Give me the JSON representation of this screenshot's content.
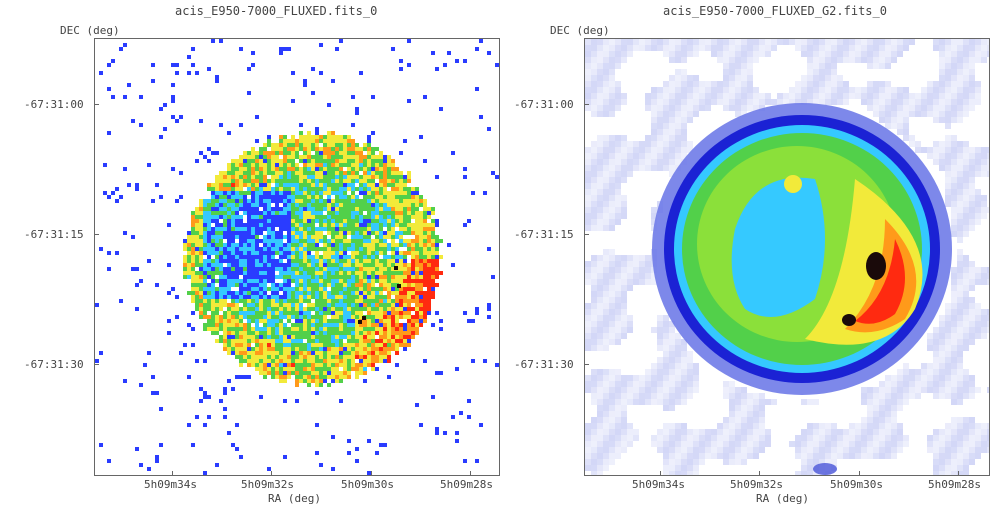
{
  "panels": [
    {
      "title": "acis_E950-7000_FLUXED.fits_0",
      "ylabel": "DEC (deg)",
      "xlabel": "RA (deg)",
      "yticks": [
        "-67:31:00",
        "-67:31:15",
        "-67:31:30"
      ],
      "xticks": [
        "5h09m34s",
        "5h09m32s",
        "5h09m30s",
        "5h09m28s"
      ],
      "style": "raw counts, pixelated"
    },
    {
      "title": "acis_E950-7000_FLUXED_G2.fits_0",
      "ylabel": "DEC (deg)",
      "xlabel": "RA (deg)",
      "yticks": [
        "-67:31:00",
        "-67:31:15",
        "-67:31:30"
      ],
      "xticks": [
        "5h09m34s",
        "5h09m32s",
        "5h09m30s",
        "5h09m28s"
      ],
      "style": "gaussian smoothed"
    }
  ],
  "colors": {
    "low": "#2a3cff",
    "cyan": "#35c9ff",
    "green": "#52d04a",
    "yellow": "#f2ea3a",
    "orange": "#ff9a1a",
    "red": "#ff2a10",
    "peak": "#1a0a0a",
    "smooth_bg": "#c8cdf5"
  }
}
